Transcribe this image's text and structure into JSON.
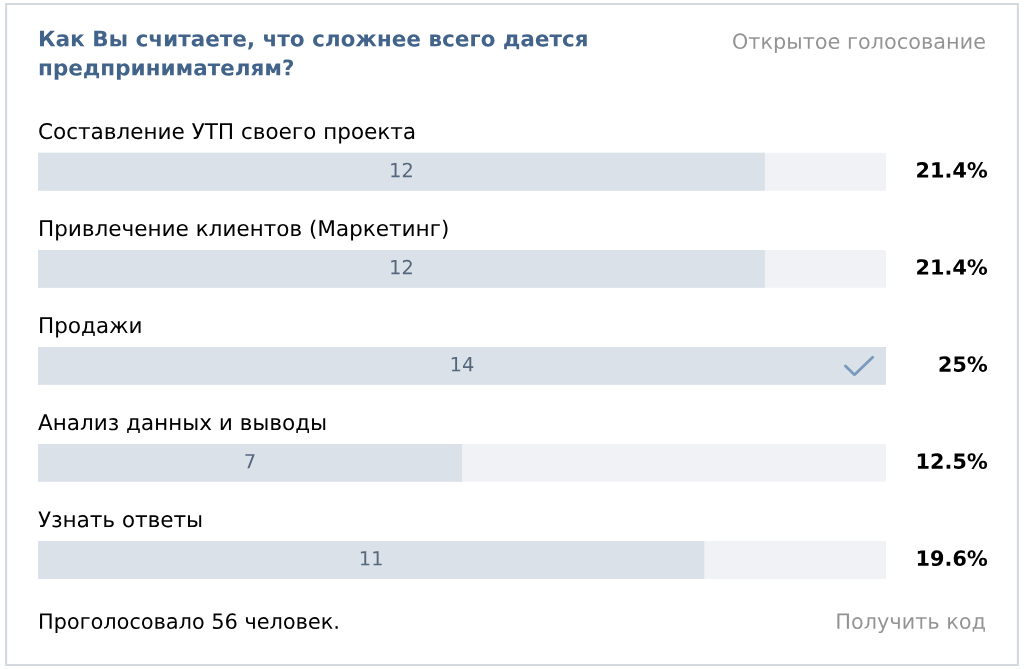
{
  "chart_data": {
    "type": "bar",
    "orientation": "horizontal",
    "title": "Как Вы считаете, что сложнее всего дается предпринимателям?",
    "subtitle": "Открытое голосование",
    "categories": [
      "Составление УТП своего проекта",
      "Привлечение клиентов (Маркетинг)",
      "Продажи",
      "Анализ данных и выводы",
      "Узнать ответы"
    ],
    "values": [
      12,
      12,
      14,
      7,
      11
    ],
    "color": "#dae1e8",
    "xlim": [
      0,
      14
    ],
    "data_labels": true,
    "tick_labels": "y",
    "annotations": [
      "21.4%",
      "21.4%",
      "25%",
      "12.5%",
      "19.6%",
      "Проголосовало 56 человек.",
      "Получить код"
    ]
  }
}
